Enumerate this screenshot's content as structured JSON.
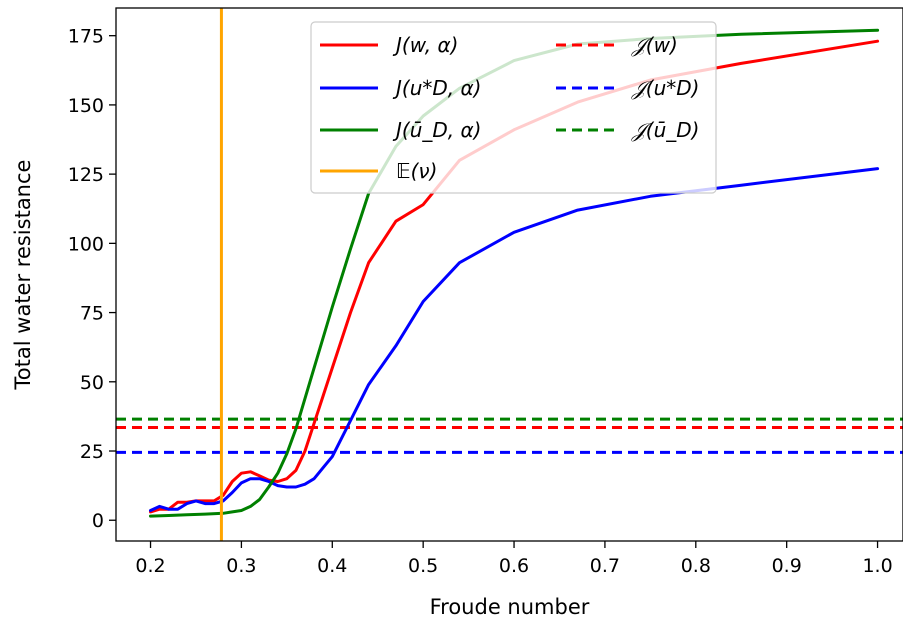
{
  "chart_data": {
    "type": "line",
    "xlabel": "Froude number",
    "ylabel": "Total water resistance",
    "xlim": [
      0.162,
      1.028
    ],
    "ylim": [
      -7.5,
      185
    ],
    "xticks": [
      "0.2",
      "0.3",
      "0.4",
      "0.5",
      "0.6",
      "0.7",
      "0.8",
      "0.9",
      "1.0"
    ],
    "xtick_values": [
      0.2,
      0.3,
      0.4,
      0.5,
      0.6,
      0.7,
      0.8,
      0.9,
      1.0
    ],
    "yticks": [
      "0",
      "25",
      "50",
      "75",
      "100",
      "125",
      "150",
      "175"
    ],
    "ytick_values": [
      0,
      25,
      50,
      75,
      100,
      125,
      150,
      175
    ],
    "grid": false,
    "legend_position": "top-center",
    "legend_columns": 2,
    "series": [
      {
        "name": "J(w, α)",
        "color": "#ff0000",
        "style": "solid",
        "x": [
          0.2,
          0.21,
          0.22,
          0.23,
          0.24,
          0.25,
          0.26,
          0.27,
          0.28,
          0.29,
          0.3,
          0.31,
          0.32,
          0.33,
          0.34,
          0.35,
          0.36,
          0.37,
          0.38,
          0.39,
          0.4,
          0.42,
          0.44,
          0.47,
          0.5,
          0.54,
          0.6,
          0.67,
          0.75,
          0.85,
          1.0
        ],
        "y": [
          3,
          4,
          4,
          6.5,
          6.5,
          7,
          7,
          7,
          9,
          14,
          17,
          17.5,
          16,
          14.5,
          14,
          15,
          18,
          25,
          35,
          45,
          55,
          75,
          93,
          108,
          114,
          130,
          141,
          151,
          159,
          165,
          173
        ]
      },
      {
        "name": "J(u*D, α)",
        "color": "#0000ff",
        "style": "solid",
        "x": [
          0.2,
          0.21,
          0.22,
          0.23,
          0.24,
          0.25,
          0.26,
          0.27,
          0.28,
          0.29,
          0.3,
          0.31,
          0.32,
          0.33,
          0.34,
          0.35,
          0.36,
          0.37,
          0.38,
          0.39,
          0.4,
          0.42,
          0.44,
          0.47,
          0.5,
          0.54,
          0.6,
          0.67,
          0.75,
          0.85,
          1.0
        ],
        "y": [
          3.5,
          5,
          4,
          4,
          6,
          7,
          6,
          6,
          7,
          10,
          13.5,
          15,
          15,
          14,
          12.5,
          12,
          12,
          13,
          15,
          19,
          23,
          36,
          49,
          63,
          79,
          93,
          104,
          112,
          117,
          121,
          127
        ]
      },
      {
        "name": "J(ū_D, α)",
        "color": "#008000",
        "style": "solid",
        "x": [
          0.2,
          0.22,
          0.24,
          0.26,
          0.28,
          0.29,
          0.3,
          0.31,
          0.32,
          0.33,
          0.34,
          0.35,
          0.36,
          0.37,
          0.38,
          0.39,
          0.4,
          0.42,
          0.44,
          0.47,
          0.5,
          0.54,
          0.6,
          0.67,
          0.75,
          0.85,
          1.0
        ],
        "y": [
          1.5,
          1.7,
          2,
          2.2,
          2.5,
          3,
          3.5,
          5,
          7.5,
          12,
          17,
          24,
          33,
          44,
          55,
          66,
          77,
          98,
          118,
          135,
          146,
          156,
          166,
          172,
          174,
          175.5,
          177
        ]
      },
      {
        "name": "𝔼(ν)",
        "color": "#ffa500",
        "style": "solid",
        "vertical_x": 0.278
      },
      {
        "name": "𝒥(w)",
        "color": "#ff0000",
        "style": "dashed",
        "constant_y": 33.5
      },
      {
        "name": "𝒥(u*D)",
        "color": "#0000ff",
        "style": "dashed",
        "constant_y": 24.5
      },
      {
        "name": "𝒥(ū_D)",
        "color": "#008000",
        "style": "dashed",
        "constant_y": 36.5
      }
    ]
  }
}
